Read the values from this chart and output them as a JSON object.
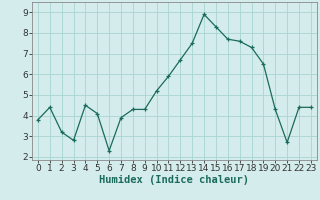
{
  "x": [
    0,
    1,
    2,
    3,
    4,
    5,
    6,
    7,
    8,
    9,
    10,
    11,
    12,
    13,
    14,
    15,
    16,
    17,
    18,
    19,
    20,
    21,
    22,
    23
  ],
  "y": [
    3.8,
    4.4,
    3.2,
    2.8,
    4.5,
    4.1,
    2.3,
    3.9,
    4.3,
    4.3,
    5.2,
    5.9,
    6.7,
    7.5,
    8.9,
    8.3,
    7.7,
    7.6,
    7.3,
    6.5,
    4.3,
    2.7,
    4.4,
    4.4
  ],
  "xlabel": "Humidex (Indice chaleur)",
  "ylim": [
    1.85,
    9.5
  ],
  "xlim": [
    -0.5,
    23.5
  ],
  "yticks": [
    2,
    3,
    4,
    5,
    6,
    7,
    8,
    9
  ],
  "xticks": [
    0,
    1,
    2,
    3,
    4,
    5,
    6,
    7,
    8,
    9,
    10,
    11,
    12,
    13,
    14,
    15,
    16,
    17,
    18,
    19,
    20,
    21,
    22,
    23
  ],
  "line_color": "#1a6b5a",
  "marker_color": "#1a6b5a",
  "bg_color": "#d4edec",
  "grid_color": "#a8d5d1",
  "xlabel_fontsize": 7.5,
  "tick_fontsize": 6.5
}
